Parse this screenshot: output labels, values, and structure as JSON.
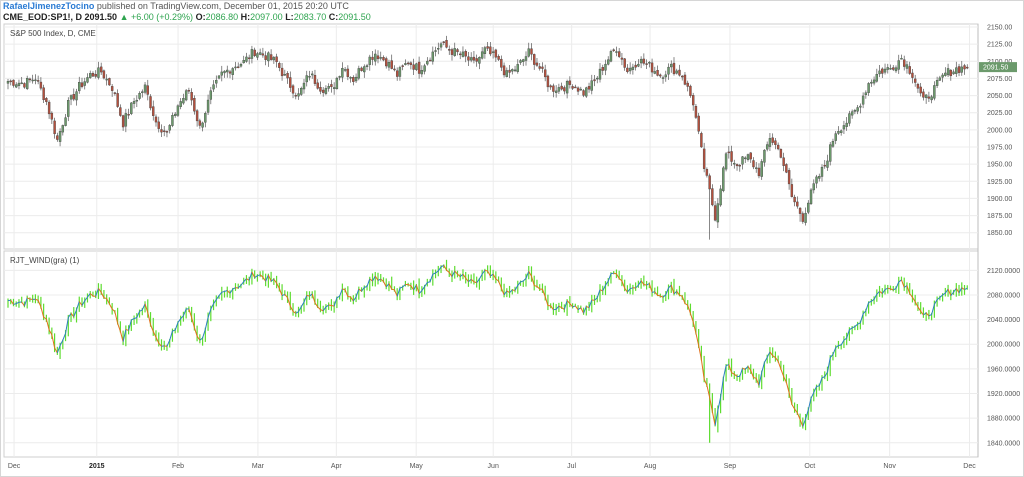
{
  "header": {
    "author": "RafaelJimenezTocino",
    "published": "published on TradingView.com, December 01, 2015 20:20 UTC",
    "symbol": "CME_EOD:SP1!, D",
    "last": "2091.50",
    "change": "▲ +6.00 (+0.29%)",
    "o_label": "O:",
    "o_value": "2086.80",
    "h_label": "H:",
    "h_value": "2097.00",
    "l_label": "L:",
    "l_value": "2083.70",
    "c_label": "C:",
    "c_value": "2091.50"
  },
  "colors": {
    "up": "#6c9a6c",
    "down": "#b5503d",
    "grid": "#ececec",
    "wind_up": "#2b7fc0",
    "wind_down": "#e2701a",
    "wind_bar": "#5ddc2f",
    "badge": "#6c9a6c"
  },
  "chart_data": [
    {
      "type": "candlestick",
      "title": "S&P 500 Index, D, CME",
      "ylim": [
        1835,
        2150
      ],
      "y_ticks": [
        "1850.00",
        "1875.00",
        "1900.00",
        "1925.00",
        "1950.00",
        "1975.00",
        "2000.00",
        "2025.00",
        "2050.00",
        "2075.00",
        "2100.00",
        "2125.00",
        "2150.00"
      ],
      "last_badge": "2091.50",
      "x_labels": [
        "Dec",
        "2015",
        "Feb",
        "Mar",
        "Apr",
        "May",
        "Jun",
        "Jul",
        "Aug",
        "Sep",
        "Oct",
        "Nov",
        "Dec"
      ],
      "anchors": [
        [
          0,
          2071
        ],
        [
          6,
          2068
        ],
        [
          10,
          2076
        ],
        [
          14,
          2041
        ],
        [
          18,
          1985
        ],
        [
          22,
          2037
        ],
        [
          26,
          2063
        ],
        [
          30,
          2080
        ],
        [
          34,
          2085
        ],
        [
          38,
          2062
        ],
        [
          42,
          2010
        ],
        [
          46,
          2042
        ],
        [
          50,
          2062
        ],
        [
          54,
          2012
        ],
        [
          58,
          1994
        ],
        [
          62,
          2036
        ],
        [
          66,
          2058
        ],
        [
          70,
          2003
        ],
        [
          74,
          2052
        ],
        [
          78,
          2081
        ],
        [
          82,
          2092
        ],
        [
          86,
          2099
        ],
        [
          90,
          2115
        ],
        [
          94,
          2108
        ],
        [
          98,
          2098
        ],
        [
          102,
          2070
        ],
        [
          106,
          2050
        ],
        [
          110,
          2082
        ],
        [
          114,
          2062
        ],
        [
          118,
          2058
        ],
        [
          122,
          2093
        ],
        [
          126,
          2074
        ],
        [
          130,
          2097
        ],
        [
          134,
          2112
        ],
        [
          138,
          2100
        ],
        [
          142,
          2080
        ],
        [
          146,
          2100
        ],
        [
          150,
          2088
        ],
        [
          154,
          2108
        ],
        [
          158,
          2125
        ],
        [
          162,
          2115
        ],
        [
          166,
          2108
        ],
        [
          170,
          2096
        ],
        [
          174,
          2116
        ],
        [
          178,
          2104
        ],
        [
          182,
          2080
        ],
        [
          186,
          2092
        ],
        [
          190,
          2113
        ],
        [
          194,
          2090
        ],
        [
          198,
          2060
        ],
        [
          202,
          2062
        ],
        [
          206,
          2067
        ],
        [
          210,
          2054
        ],
        [
          214,
          2070
        ],
        [
          218,
          2098
        ],
        [
          222,
          2120
        ],
        [
          226,
          2086
        ],
        [
          230,
          2102
        ],
        [
          234,
          2093
        ],
        [
          238,
          2080
        ],
        [
          242,
          2091
        ],
        [
          246,
          2080
        ],
        [
          250,
          2040
        ],
        [
          254,
          1945
        ],
        [
          258,
          1874
        ],
        [
          262,
          1964
        ],
        [
          266,
          1950
        ],
        [
          270,
          1960
        ],
        [
          274,
          1938
        ],
        [
          278,
          1990
        ],
        [
          282,
          1965
        ],
        [
          286,
          1902
        ],
        [
          290,
          1872
        ],
        [
          294,
          1918
        ],
        [
          298,
          1948
        ],
        [
          302,
          1998
        ],
        [
          306,
          2012
        ],
        [
          310,
          2032
        ],
        [
          314,
          2068
        ],
        [
          318,
          2085
        ],
        [
          322,
          2090
        ],
        [
          326,
          2105
        ],
        [
          330,
          2082
        ],
        [
          334,
          2041
        ],
        [
          338,
          2060
        ],
        [
          342,
          2082
        ],
        [
          346,
          2089
        ],
        [
          350,
          2091
        ]
      ]
    },
    {
      "type": "line",
      "title": "RJT_WIND(gra) (1)",
      "ylim": [
        1825,
        2140
      ],
      "y_ticks": [
        "1840.0000",
        "1880.0000",
        "1920.0000",
        "1960.0000",
        "2000.0000",
        "2040.0000",
        "2080.0000",
        "2120.0000"
      ],
      "x_labels": [
        "Dec",
        "2015",
        "Feb",
        "Mar",
        "Apr",
        "May",
        "Jun",
        "Jul",
        "Aug",
        "Sep",
        "Oct",
        "Nov",
        "Dec"
      ]
    }
  ]
}
